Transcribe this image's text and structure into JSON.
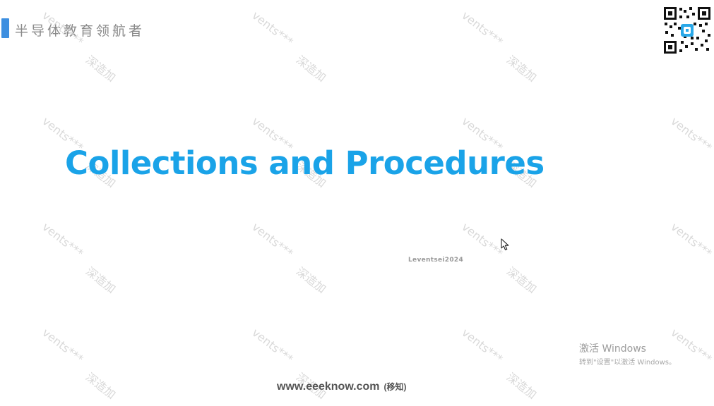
{
  "header": {
    "brand_text": "半导体教育领航者"
  },
  "slide": {
    "title": "Collections and Procedures"
  },
  "watermark": {
    "repeat_text_a": "vents***",
    "repeat_text_b": "深造加"
  },
  "overlay": {
    "small_watermark": "Leventsei2024"
  },
  "windows_activation": {
    "title": "激活 Windows",
    "subtitle": "转到\"设置\"以激活 Windows。"
  },
  "footer": {
    "site": "www.eeeknow.com",
    "note": "(移知)"
  },
  "colors": {
    "title": "#1aa3e8",
    "brand_bar": "#3d8fe0",
    "watermark": "#d9d9d9"
  }
}
